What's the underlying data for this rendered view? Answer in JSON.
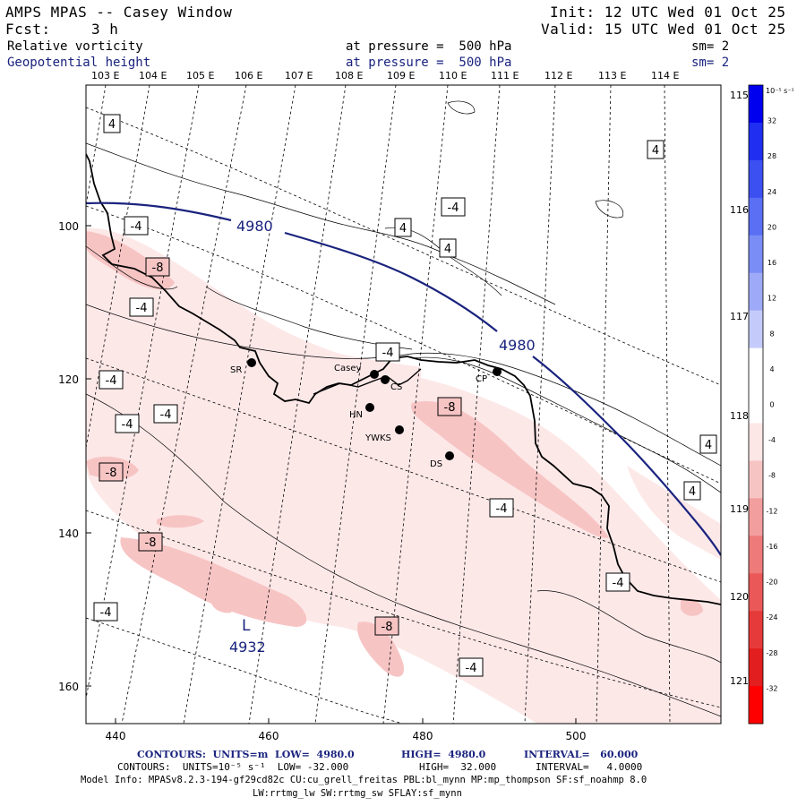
{
  "header": {
    "title": "AMPS MPAS -- Casey Window",
    "init": "Init: 12 UTC Wed 01 Oct 25",
    "fcst_label": "Fcst:",
    "fcst_value": "3 h",
    "valid": "Valid: 15 UTC Wed 01 Oct 25",
    "field1_name": "Relative vorticity",
    "field1_pressure": "at pressure =  500 hPa",
    "field1_sm": "sm= 2",
    "field2_name": "Geopotential height",
    "field2_pressure": "at pressure =  500 hPa",
    "field2_sm": "sm= 2"
  },
  "chart_data": {
    "type": "contour-map",
    "top_lon_labels": [
      "103 E",
      "104 E",
      "105 E",
      "106 E",
      "107 E",
      "108 E",
      "109 E",
      "110 E",
      "111 E",
      "112 E",
      "113 E",
      "114 E"
    ],
    "right_lon_labels": [
      "115 E",
      "116 E",
      "117 E",
      "118 E",
      "119 E",
      "120 E",
      "121 E"
    ],
    "x_ticks": [
      "440",
      "460",
      "480",
      "500"
    ],
    "y_ticks": [
      "100",
      "120",
      "140",
      "160"
    ],
    "vorticity_labels": [
      "4",
      "4",
      "-4",
      "-4",
      "4",
      "4",
      "-4",
      "-8",
      "-4",
      "-4",
      "-4",
      "-4",
      "4",
      "4",
      "-8",
      "-8",
      "-8",
      "-4",
      "-4",
      "-4",
      "-8",
      "-4",
      "-4",
      "-4"
    ],
    "height_labels": [
      "4980",
      "4980"
    ],
    "low_symbol": "L",
    "low_value": "4932",
    "stations": [
      "SR",
      "Casey",
      "CS",
      "CP",
      "HN",
      "YWKS",
      "DS"
    ],
    "colorbar": {
      "unit": "10⁻⁵ s⁻¹",
      "levels": [
        "32",
        "28",
        "24",
        "20",
        "16",
        "12",
        "8",
        "4",
        "0",
        "-4",
        "-8",
        "-12",
        "-16",
        "-20",
        "-24",
        "-28",
        "-32"
      ],
      "colors": [
        "#0000ee",
        "#1f2ef0",
        "#3c50f2",
        "#5a6ff4",
        "#7a8df6",
        "#9eaaf8",
        "#c4cbfa",
        "#ffffff",
        "#ffffff",
        "#fce6e6",
        "#f7c4c4",
        "#f29e9e",
        "#ee7a7a",
        "#ea5858",
        "#e63a3a",
        "#e21e1e",
        "#ff0000"
      ]
    }
  },
  "footer": {
    "line1a": "CONTOURS:  UNITS=m  LOW=  4980.0",
    "line1b": "HIGH=  4980.0",
    "line1c": "INTERVAL=   60.000",
    "line2a": "CONTOURS:  UNITS=10⁻⁵ s⁻¹  LOW= -32.000",
    "line2b": "HIGH=  32.000",
    "line2c": "INTERVAL=   4.0000",
    "line3": "Model Info: MPASv8.2.3-194-gf29cd82c CU:cu_grell_freitas PBL:bl_mynn MP:mp_thompson SF:sf_noahmp 8.0",
    "line4": "LW:rrtmg_lw SW:rrtmg_sw SFLAY:sf_mynn"
  }
}
